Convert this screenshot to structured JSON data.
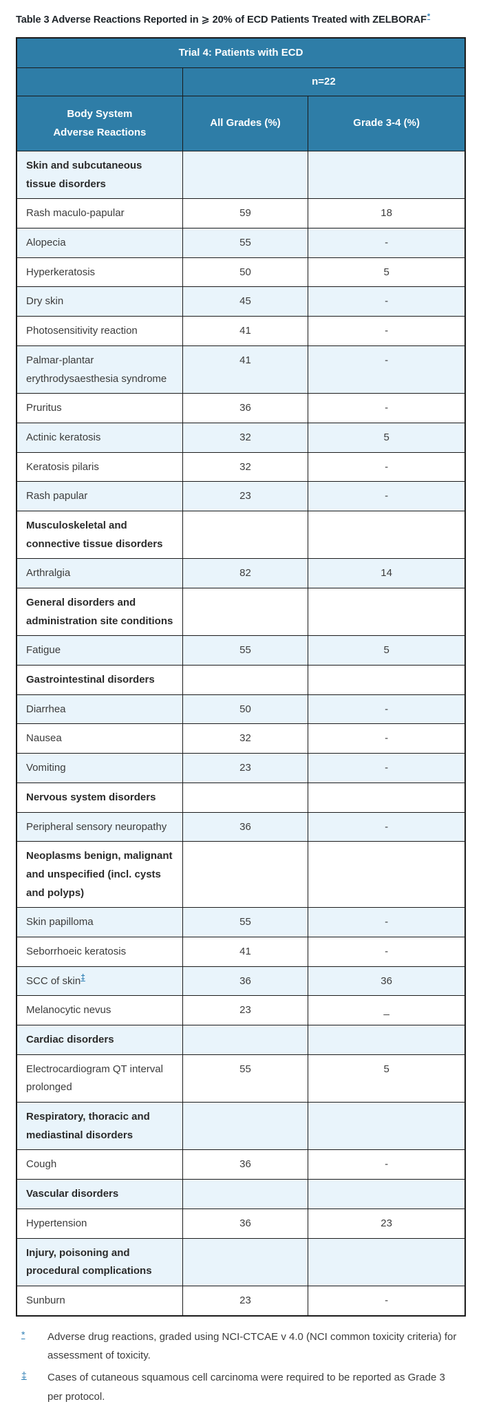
{
  "accent": {
    "header_bg": "#2e7da7",
    "header_text": "#ffffff",
    "stripe_bg": "#e9f4fb",
    "border_color": "#1a1a1a",
    "link_color": "#2e7fb5"
  },
  "title": {
    "text": "Table 3 Adverse Reactions Reported in ⩾ 20% of ECD Patients Treated with ZELBORAF",
    "footnote_marker": "*"
  },
  "table": {
    "trial_header": "Trial 4: Patients with ECD",
    "n_header": "n=22",
    "columns": {
      "body_system_line1": "Body System",
      "body_system_line2": "Adverse Reactions",
      "all_grades": "All Grades (%)",
      "grade_3_4": "Grade 3-4 (%)"
    },
    "rows": [
      {
        "type": "category",
        "label": "Skin and subcutaneous tissue disorders",
        "all_grades": "",
        "grade_3_4": ""
      },
      {
        "type": "reaction",
        "label": "Rash maculo-papular",
        "all_grades": "59",
        "grade_3_4": "18"
      },
      {
        "type": "reaction",
        "label": "Alopecia",
        "all_grades": "55",
        "grade_3_4": "-"
      },
      {
        "type": "reaction",
        "label": "Hyperkeratosis",
        "all_grades": "50",
        "grade_3_4": "5"
      },
      {
        "type": "reaction",
        "label": "Dry skin",
        "all_grades": "45",
        "grade_3_4": "-"
      },
      {
        "type": "reaction",
        "label": "Photosensitivity reaction",
        "all_grades": "41",
        "grade_3_4": "-"
      },
      {
        "type": "reaction",
        "label": "Palmar-plantar erythrodysaesthesia syndrome",
        "all_grades": "41",
        "grade_3_4": "-"
      },
      {
        "type": "reaction",
        "label": "Pruritus",
        "all_grades": "36",
        "grade_3_4": "-"
      },
      {
        "type": "reaction",
        "label": "Actinic keratosis",
        "all_grades": "32",
        "grade_3_4": "5"
      },
      {
        "type": "reaction",
        "label": "Keratosis pilaris",
        "all_grades": "32",
        "grade_3_4": "-"
      },
      {
        "type": "reaction",
        "label": "Rash papular",
        "all_grades": "23",
        "grade_3_4": "-"
      },
      {
        "type": "category",
        "label": "Musculoskeletal and connective tissue disorders",
        "all_grades": "",
        "grade_3_4": ""
      },
      {
        "type": "reaction",
        "label": "Arthralgia",
        "all_grades": "82",
        "grade_3_4": "14"
      },
      {
        "type": "category",
        "label": "General disorders and administration site conditions",
        "all_grades": "",
        "grade_3_4": ""
      },
      {
        "type": "reaction",
        "label": "Fatigue",
        "all_grades": "55",
        "grade_3_4": "5"
      },
      {
        "type": "category",
        "label": "Gastrointestinal disorders",
        "all_grades": "",
        "grade_3_4": ""
      },
      {
        "type": "reaction",
        "label": "Diarrhea",
        "all_grades": "50",
        "grade_3_4": "-"
      },
      {
        "type": "reaction",
        "label": "Nausea",
        "all_grades": "32",
        "grade_3_4": "-"
      },
      {
        "type": "reaction",
        "label": "Vomiting",
        "all_grades": "23",
        "grade_3_4": "-"
      },
      {
        "type": "category",
        "label": "Nervous system disorders",
        "all_grades": "",
        "grade_3_4": ""
      },
      {
        "type": "reaction",
        "label": "Peripheral sensory neuropathy",
        "all_grades": "36",
        "grade_3_4": "-"
      },
      {
        "type": "category",
        "label": "Neoplasms benign, malignant and unspecified (incl. cysts and polyps)",
        "all_grades": "",
        "grade_3_4": ""
      },
      {
        "type": "reaction",
        "label": "Skin papilloma",
        "all_grades": "55",
        "grade_3_4": "-"
      },
      {
        "type": "reaction",
        "label": "Seborrhoeic keratosis",
        "all_grades": "41",
        "grade_3_4": "-"
      },
      {
        "type": "reaction",
        "label": "SCC of skin",
        "label_sup": "‡",
        "all_grades": "36",
        "grade_3_4": "36"
      },
      {
        "type": "reaction",
        "label": "Melanocytic nevus",
        "all_grades": "23",
        "grade_3_4": "_"
      },
      {
        "type": "category",
        "label": "Cardiac disorders",
        "all_grades": "",
        "grade_3_4": ""
      },
      {
        "type": "reaction",
        "label": "Electrocardiogram QT interval prolonged",
        "all_grades": "55",
        "grade_3_4": "5"
      },
      {
        "type": "category",
        "label": "Respiratory, thoracic and mediastinal disorders",
        "all_grades": "",
        "grade_3_4": ""
      },
      {
        "type": "reaction",
        "label": "Cough",
        "all_grades": "36",
        "grade_3_4": "-"
      },
      {
        "type": "category",
        "label": "Vascular disorders",
        "all_grades": "",
        "grade_3_4": ""
      },
      {
        "type": "reaction",
        "label": "Hypertension",
        "all_grades": "36",
        "grade_3_4": "23"
      },
      {
        "type": "category",
        "label": "Injury, poisoning and procedural complications",
        "all_grades": "",
        "grade_3_4": ""
      },
      {
        "type": "reaction",
        "label": "Sunburn",
        "all_grades": "23",
        "grade_3_4": "-"
      }
    ]
  },
  "footnotes": [
    {
      "marker": "*",
      "text": "Adverse drug reactions, graded using NCI-CTCAE v 4.0 (NCI common toxicity criteria) for assessment of toxicity."
    },
    {
      "marker": "‡",
      "text": "Cases of cutaneous squamous cell carcinoma were required to be reported as Grade 3 per protocol."
    }
  ]
}
